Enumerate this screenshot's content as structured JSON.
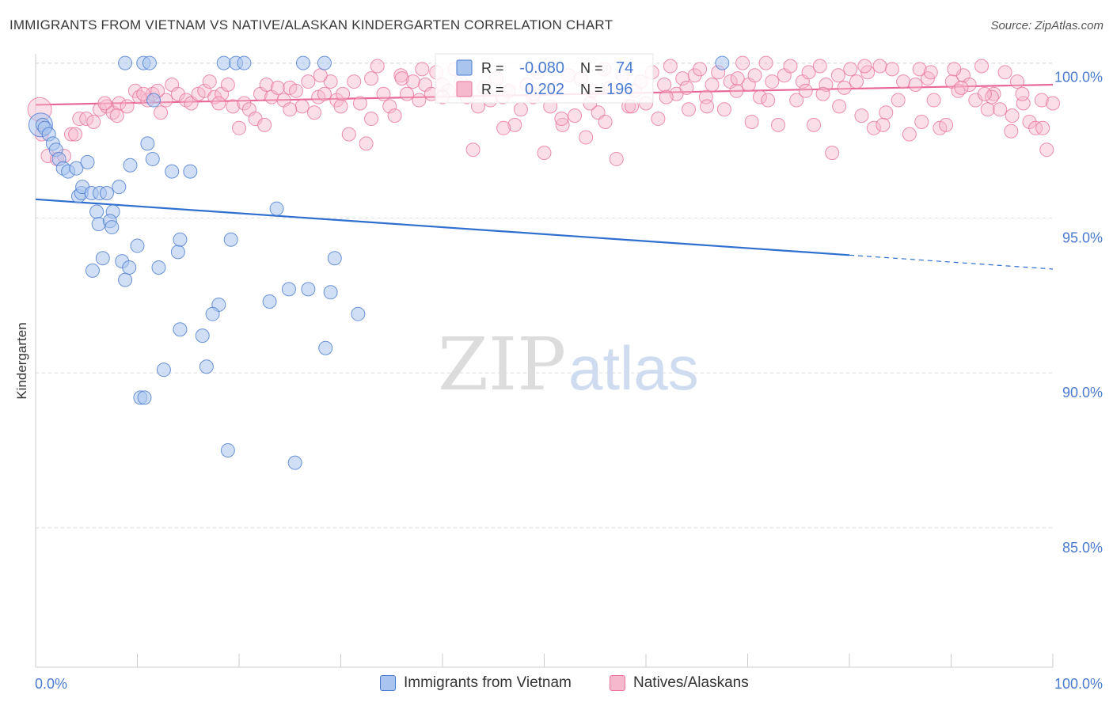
{
  "title": "IMMIGRANTS FROM VIETNAM VS NATIVE/ALASKAN KINDERGARTEN CORRELATION CHART",
  "source": "Source: ZipAtlas.com",
  "watermark": {
    "zip": "ZIP",
    "atlas": "atlas"
  },
  "colors": {
    "blue": "#4a7bd0",
    "blue_fill": "#a9c4ee",
    "pink": "#e8749c",
    "pink_fill": "#f6b8cd"
  },
  "legend_top": [
    {
      "r_label": "R =",
      "r_value": "-0.080",
      "n_label": "N =",
      "n_value": "74"
    },
    {
      "r_label": "R =",
      "r_value": "0.202",
      "n_label": "N =",
      "n_value": "196"
    }
  ],
  "legend_bottom": [
    "Immigrants from Vietnam",
    "Natives/Alaskans"
  ],
  "chart_data": {
    "type": "scatter",
    "xlabel": "",
    "ylabel": "Kindergarten",
    "xlim": [
      0,
      100
    ],
    "ylim": [
      80.5,
      100.5
    ],
    "x_tick_labels": [
      "0.0%",
      "100.0%"
    ],
    "y_ticks": [
      {
        "value": 100,
        "label": "100.0%"
      },
      {
        "value": 95,
        "label": "95.0%"
      },
      {
        "value": 90,
        "label": "90.0%"
      },
      {
        "value": 85,
        "label": "85.0%"
      }
    ],
    "grid": true,
    "series": [
      {
        "name": "Immigrants from Vietnam",
        "color": "#4a7bd0",
        "trend": {
          "x0": 0,
          "y0": 95.6,
          "x1": 80,
          "y1": 93.8,
          "dash_to_x": 100,
          "dash_to_y": 93.35
        },
        "points": [
          [
            0.5,
            98
          ],
          [
            0.7,
            98
          ],
          [
            0.9,
            97.9
          ],
          [
            1.3,
            97.7
          ],
          [
            1.7,
            97.4
          ],
          [
            2.0,
            97.2
          ],
          [
            2.3,
            96.9
          ],
          [
            2.7,
            96.6
          ],
          [
            3.2,
            96.5
          ],
          [
            4.0,
            96.6
          ],
          [
            5.1,
            96.8
          ],
          [
            4.2,
            95.7
          ],
          [
            4.5,
            95.8
          ],
          [
            4.6,
            96.0
          ],
          [
            5.5,
            95.8
          ],
          [
            6.0,
            95.2
          ],
          [
            6.3,
            95.8
          ],
          [
            7.0,
            95.8
          ],
          [
            7.6,
            95.2
          ],
          [
            8.2,
            96.0
          ],
          [
            6.2,
            94.8
          ],
          [
            7.3,
            94.9
          ],
          [
            7.5,
            94.7
          ],
          [
            9.3,
            96.7
          ],
          [
            11.0,
            97.4
          ],
          [
            11.5,
            96.9
          ],
          [
            13.4,
            96.5
          ],
          [
            15.2,
            96.5
          ],
          [
            23.7,
            95.3
          ],
          [
            6.6,
            93.7
          ],
          [
            5.6,
            93.3
          ],
          [
            8.5,
            93.6
          ],
          [
            8.8,
            93.0
          ],
          [
            10.0,
            94.1
          ],
          [
            9.2,
            93.4
          ],
          [
            12.1,
            93.4
          ],
          [
            14.0,
            93.9
          ],
          [
            14.2,
            94.3
          ],
          [
            19.2,
            94.3
          ],
          [
            29.4,
            93.7
          ],
          [
            23.0,
            92.3
          ],
          [
            24.9,
            92.7
          ],
          [
            26.8,
            92.7
          ],
          [
            29.0,
            92.6
          ],
          [
            18.0,
            92.2
          ],
          [
            17.4,
            91.9
          ],
          [
            14.2,
            91.4
          ],
          [
            16.4,
            91.2
          ],
          [
            31.7,
            91.9
          ],
          [
            28.5,
            90.8
          ],
          [
            12.6,
            90.1
          ],
          [
            16.8,
            90.2
          ],
          [
            10.3,
            89.2
          ],
          [
            10.7,
            89.2
          ],
          [
            18.9,
            87.5
          ],
          [
            25.5,
            87.1
          ],
          [
            8.8,
            100
          ],
          [
            10.6,
            100
          ],
          [
            11.2,
            100
          ],
          [
            18.5,
            100
          ],
          [
            19.7,
            100
          ],
          [
            20.5,
            100
          ],
          [
            26.3,
            100
          ],
          [
            28.4,
            100
          ],
          [
            67.5,
            100
          ],
          [
            11.6,
            98.8
          ]
        ]
      },
      {
        "name": "Natives/Alaskans",
        "color": "#e8749c",
        "trend": {
          "x0": 0,
          "y0": 98.65,
          "x1": 100,
          "y1": 99.3
        },
        "points": [
          [
            0.4,
            98.5
          ],
          [
            0.6,
            97.7
          ],
          [
            1.2,
            97.0
          ],
          [
            2.1,
            96.9
          ],
          [
            3.5,
            97.7
          ],
          [
            4.3,
            98.2
          ],
          [
            5.0,
            98.2
          ],
          [
            5.7,
            98.1
          ],
          [
            6.3,
            98.5
          ],
          [
            7.0,
            98.6
          ],
          [
            7.6,
            98.4
          ],
          [
            8.2,
            98.7
          ],
          [
            9.0,
            98.6
          ],
          [
            9.8,
            99.1
          ],
          [
            10.2,
            98.9
          ],
          [
            11.0,
            98.8
          ],
          [
            11.5,
            99.0
          ],
          [
            12.3,
            98.4
          ],
          [
            12.8,
            98.8
          ],
          [
            13.4,
            99.3
          ],
          [
            14.0,
            99.0
          ],
          [
            14.8,
            98.8
          ],
          [
            15.3,
            98.7
          ],
          [
            16.0,
            99.0
          ],
          [
            16.6,
            99.1
          ],
          [
            17.1,
            99.4
          ],
          [
            17.6,
            98.9
          ],
          [
            18.3,
            99.0
          ],
          [
            18.9,
            99.3
          ],
          [
            19.4,
            98.6
          ],
          [
            20.0,
            97.9
          ],
          [
            20.5,
            98.7
          ],
          [
            21.0,
            98.5
          ],
          [
            21.6,
            98.2
          ],
          [
            22.1,
            99.0
          ],
          [
            22.7,
            99.3
          ],
          [
            23.2,
            98.9
          ],
          [
            23.8,
            99.2
          ],
          [
            24.4,
            98.8
          ],
          [
            25.0,
            99.2
          ],
          [
            25.6,
            99.1
          ],
          [
            26.2,
            98.6
          ],
          [
            26.8,
            99.4
          ],
          [
            27.4,
            98.4
          ],
          [
            27.8,
            98.9
          ],
          [
            28.4,
            99.0
          ],
          [
            29.0,
            99.4
          ],
          [
            29.6,
            98.8
          ],
          [
            30.2,
            99.0
          ],
          [
            30.8,
            97.7
          ],
          [
            31.3,
            99.4
          ],
          [
            31.9,
            98.7
          ],
          [
            32.5,
            97.4
          ],
          [
            33.0,
            99.5
          ],
          [
            33.6,
            99.9
          ],
          [
            34.2,
            99.0
          ],
          [
            34.8,
            98.6
          ],
          [
            35.3,
            98.3
          ],
          [
            35.9,
            99.6
          ],
          [
            36.5,
            99.0
          ],
          [
            37.1,
            99.4
          ],
          [
            37.7,
            98.8
          ],
          [
            38.3,
            99.3
          ],
          [
            38.9,
            99.0
          ],
          [
            39.4,
            99.7
          ],
          [
            40.0,
            99.3
          ],
          [
            40.6,
            99.1
          ],
          [
            41.2,
            99.8
          ],
          [
            41.8,
            99.4
          ],
          [
            42.4,
            98.9
          ],
          [
            43.0,
            97.2
          ],
          [
            43.5,
            98.6
          ],
          [
            44.1,
            99.2
          ],
          [
            44.7,
            98.8
          ],
          [
            45.3,
            99.5
          ],
          [
            45.9,
            98.9
          ],
          [
            46.5,
            99.1
          ],
          [
            47.1,
            98.0
          ],
          [
            47.7,
            98.5
          ],
          [
            48.3,
            99.3
          ],
          [
            48.9,
            98.9
          ],
          [
            49.4,
            99.7
          ],
          [
            50.0,
            97.1
          ],
          [
            50.6,
            98.6
          ],
          [
            51.2,
            99.2
          ],
          [
            51.8,
            98.0
          ],
          [
            52.4,
            99.6
          ],
          [
            53.0,
            98.3
          ],
          [
            53.6,
            99.5
          ],
          [
            54.1,
            97.6
          ],
          [
            54.7,
            99.1
          ],
          [
            55.3,
            98.4
          ],
          [
            55.9,
            99.8
          ],
          [
            56.5,
            99.2
          ],
          [
            57.1,
            96.9
          ],
          [
            57.7,
            99.6
          ],
          [
            58.3,
            98.6
          ],
          [
            58.9,
            99.1
          ],
          [
            59.5,
            99.4
          ],
          [
            60.0,
            98.7
          ],
          [
            60.6,
            99.7
          ],
          [
            61.2,
            98.2
          ],
          [
            61.8,
            99.3
          ],
          [
            62.4,
            99.9
          ],
          [
            63.0,
            99.0
          ],
          [
            63.6,
            99.5
          ],
          [
            64.2,
            98.5
          ],
          [
            64.8,
            99.6
          ],
          [
            65.3,
            99.8
          ],
          [
            65.9,
            98.9
          ],
          [
            66.5,
            99.3
          ],
          [
            67.1,
            99.7
          ],
          [
            67.7,
            98.5
          ],
          [
            68.3,
            99.4
          ],
          [
            68.9,
            99.1
          ],
          [
            69.5,
            100
          ],
          [
            70.1,
            99.3
          ],
          [
            70.7,
            99.6
          ],
          [
            71.2,
            98.9
          ],
          [
            71.8,
            100
          ],
          [
            72.4,
            99.4
          ],
          [
            73.0,
            98.0
          ],
          [
            73.6,
            99.6
          ],
          [
            74.2,
            99.9
          ],
          [
            74.8,
            98.8
          ],
          [
            75.4,
            99.4
          ],
          [
            76.0,
            99.7
          ],
          [
            76.5,
            98.0
          ],
          [
            77.1,
            99.9
          ],
          [
            77.7,
            99.3
          ],
          [
            78.3,
            97.1
          ],
          [
            78.9,
            99.6
          ],
          [
            79.5,
            99.2
          ],
          [
            80.1,
            99.8
          ],
          [
            80.7,
            99.4
          ],
          [
            81.2,
            98.3
          ],
          [
            81.8,
            99.7
          ],
          [
            82.4,
            97.9
          ],
          [
            83.0,
            99.9
          ],
          [
            83.6,
            98.4
          ],
          [
            84.2,
            99.8
          ],
          [
            84.8,
            98.8
          ],
          [
            85.3,
            99.4
          ],
          [
            85.9,
            97.7
          ],
          [
            86.5,
            99.3
          ],
          [
            87.1,
            98.1
          ],
          [
            87.7,
            99.5
          ],
          [
            88.3,
            98.8
          ],
          [
            88.9,
            97.9
          ],
          [
            89.5,
            98.0
          ],
          [
            90.1,
            99.4
          ],
          [
            90.7,
            99.1
          ],
          [
            91.2,
            99.6
          ],
          [
            91.8,
            99.3
          ],
          [
            92.4,
            98.8
          ],
          [
            93.0,
            99.9
          ],
          [
            93.6,
            98.5
          ],
          [
            94.2,
            99.0
          ],
          [
            94.8,
            98.5
          ],
          [
            95.3,
            99.7
          ],
          [
            95.9,
            97.8
          ],
          [
            96.5,
            99.4
          ],
          [
            97.1,
            98.7
          ],
          [
            97.7,
            98.1
          ],
          [
            98.3,
            97.9
          ],
          [
            98.9,
            98.8
          ],
          [
            99.4,
            97.2
          ],
          [
            100,
            98.7
          ],
          [
            28.0,
            99.6
          ],
          [
            36.0,
            99.5
          ],
          [
            51.7,
            98.2
          ],
          [
            58.6,
            98.6
          ],
          [
            69.0,
            99.5
          ],
          [
            75.7,
            99.1
          ],
          [
            86.9,
            99.8
          ],
          [
            91.0,
            99.2
          ],
          [
            8.0,
            98.3
          ],
          [
            12.0,
            99.1
          ],
          [
            18.0,
            98.7
          ],
          [
            25.0,
            98.5
          ],
          [
            33.0,
            98.2
          ],
          [
            40.0,
            98.9
          ],
          [
            46.0,
            97.9
          ],
          [
            54.5,
            98.7
          ],
          [
            62.0,
            98.9
          ],
          [
            66.0,
            98.6
          ],
          [
            72.0,
            98.8
          ],
          [
            79.0,
            98.6
          ],
          [
            83.3,
            98.0
          ],
          [
            88.0,
            99.7
          ],
          [
            94.0,
            98.9
          ],
          [
            97.0,
            99.0
          ],
          [
            99.0,
            97.9
          ],
          [
            2.8,
            97.0
          ],
          [
            6.8,
            98.7
          ],
          [
            22.5,
            98.0
          ],
          [
            30.0,
            98.6
          ],
          [
            38.0,
            99.8
          ],
          [
            49.0,
            99.0
          ],
          [
            56.0,
            98.1
          ],
          [
            64.0,
            99.2
          ],
          [
            70.4,
            98.1
          ],
          [
            77.4,
            99.0
          ],
          [
            81.5,
            99.9
          ],
          [
            90.3,
            99.8
          ],
          [
            93.3,
            99.0
          ],
          [
            96.0,
            98.3
          ],
          [
            3.9,
            97.7
          ],
          [
            10.6,
            99.0
          ]
        ]
      }
    ]
  }
}
